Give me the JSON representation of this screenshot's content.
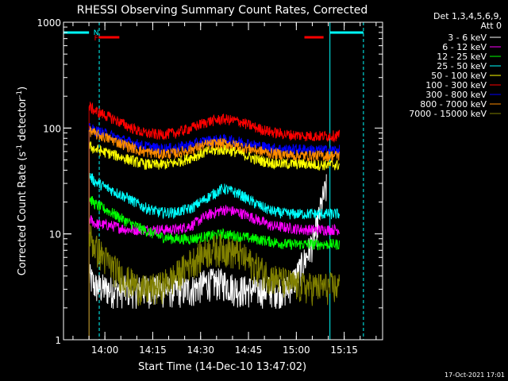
{
  "chart_data": {
    "type": "line",
    "title": "RHESSI Observing Summary Count Rates, Corrected",
    "xlabel": "Start Time (14-Dec-10 13:47:02)",
    "ylabel_main": "Corrected Count Rate (s",
    "ylabel_sup1": "-1",
    "ylabel_mid": " detector",
    "ylabel_sup2": "-1",
    "ylabel_end": ")",
    "y_scale": "log",
    "ylim": [
      1,
      1000
    ],
    "xlim_minutes": [
      0,
      100
    ],
    "x_ticks": [
      {
        "label": "14:00",
        "minute": 12.97
      },
      {
        "label": "14:15",
        "minute": 27.97
      },
      {
        "label": "14:30",
        "minute": 42.97
      },
      {
        "label": "14:45",
        "minute": 57.97
      },
      {
        "label": "15:00",
        "minute": 72.97
      },
      {
        "label": "15:15",
        "minute": 87.97
      }
    ],
    "y_ticks": [
      {
        "label": "1",
        "value": 1
      },
      {
        "label": "10",
        "value": 10
      },
      {
        "label": "100",
        "value": 100
      },
      {
        "label": "1000",
        "value": 1000
      }
    ],
    "legend_header": [
      "Det 1,3,4,5,6,9,",
      "Att 0"
    ],
    "legend_position": "right",
    "series": [
      {
        "name": "3 - 6 keV",
        "color": "#ffffff",
        "minutes": [
          8,
          10,
          15,
          20,
          25,
          30,
          35,
          40,
          45,
          50,
          55,
          60,
          65,
          70,
          73,
          76,
          79,
          81,
          82.5
        ],
        "values": [
          4,
          3.2,
          3,
          3,
          3,
          3,
          3,
          3,
          3.5,
          3.5,
          3,
          3,
          3,
          3,
          4,
          6,
          10,
          20,
          28
        ]
      },
      {
        "name": "6 - 12 keV",
        "color": "#ff00ff",
        "minutes": [
          8,
          10,
          15,
          20,
          25,
          30,
          35,
          40,
          45,
          50,
          55,
          60,
          65,
          70,
          75,
          80,
          85,
          86.5
        ],
        "values": [
          14,
          12.5,
          12,
          11,
          11,
          11,
          11,
          12,
          15,
          17,
          16,
          14,
          12,
          11.5,
          11,
          11,
          11,
          11
        ]
      },
      {
        "name": "12 - 25 keV",
        "color": "#00ff00",
        "minutes": [
          8,
          10,
          15,
          20,
          25,
          30,
          35,
          40,
          45,
          50,
          55,
          60,
          65,
          70,
          75,
          80,
          85,
          86.5
        ],
        "values": [
          22,
          19,
          16,
          13,
          11,
          9.5,
          9,
          9,
          9.5,
          10,
          9.5,
          9,
          8.5,
          8,
          8,
          8,
          8,
          8
        ]
      },
      {
        "name": "25 - 50 keV",
        "color": "#00ffff",
        "minutes": [
          8,
          10,
          15,
          20,
          25,
          30,
          35,
          40,
          45,
          50,
          55,
          60,
          65,
          70,
          75,
          80,
          85,
          86.5
        ],
        "values": [
          36,
          31,
          26,
          22,
          18,
          16,
          16,
          17.5,
          22,
          27,
          24,
          19.5,
          16.5,
          15.5,
          15.5,
          15.5,
          15.5,
          15.5
        ]
      },
      {
        "name": "50 - 100 keV",
        "color": "#ffff00",
        "minutes": [
          8,
          10,
          15,
          20,
          25,
          30,
          35,
          40,
          45,
          50,
          55,
          60,
          65,
          70,
          75,
          80,
          85,
          86.5
        ],
        "values": [
          68,
          63,
          57,
          51,
          46,
          45,
          47,
          53,
          60,
          63,
          59,
          51,
          47,
          46,
          46,
          45,
          45,
          45
        ]
      },
      {
        "name": "100 - 300 keV",
        "color": "#ff0000",
        "minutes": [
          8,
          10,
          15,
          20,
          25,
          30,
          35,
          40,
          45,
          50,
          55,
          60,
          65,
          70,
          75,
          80,
          85,
          86.5
        ],
        "values": [
          160,
          145,
          125,
          105,
          90,
          87,
          90,
          100,
          115,
          122,
          116,
          102,
          92,
          87,
          85,
          84,
          85,
          86
        ]
      },
      {
        "name": "300 - 800 keV",
        "color": "#0000ff",
        "minutes": [
          8,
          10,
          15,
          20,
          25,
          30,
          35,
          40,
          45,
          50,
          55,
          60,
          65,
          70,
          75,
          80,
          85,
          86.5
        ],
        "values": [
          100,
          95,
          85,
          75,
          68,
          64,
          65,
          70,
          76,
          78,
          75,
          69,
          65,
          63,
          63,
          62,
          62,
          62
        ]
      },
      {
        "name": "800 - 7000 keV",
        "color": "#ff8c00",
        "minutes": [
          8,
          10,
          15,
          20,
          25,
          30,
          35,
          40,
          45,
          50,
          55,
          60,
          65,
          70,
          75,
          80,
          85,
          86.5
        ],
        "values": [
          95,
          88,
          78,
          68,
          60,
          57,
          58,
          63,
          70,
          72,
          68,
          62,
          58,
          56,
          55,
          55,
          55,
          55
        ]
      },
      {
        "name": "7000 - 15000 keV",
        "color": "#808000",
        "minutes": [
          8,
          10,
          15,
          20,
          25,
          30,
          35,
          40,
          45,
          50,
          55,
          60,
          65,
          70,
          75,
          80,
          85,
          86.5
        ],
        "values": [
          10,
          7.5,
          5,
          3.7,
          3,
          3.2,
          4,
          5.5,
          7,
          7.5,
          6.5,
          5,
          4,
          3.5,
          3.2,
          3.2,
          3.2,
          3.2
        ]
      }
    ],
    "flag_bars": [
      {
        "label": "N",
        "color": "#00ffff",
        "start_minute": 0,
        "end_minute": 8,
        "level": "top"
      },
      {
        "label": "F",
        "color": "#ff0000",
        "start_minute": 11,
        "end_minute": 17.5,
        "level": "lower"
      },
      {
        "label": "",
        "color": "#ff0000",
        "start_minute": 75.5,
        "end_minute": 81.5,
        "level": "lower"
      },
      {
        "label": "",
        "color": "#00ffff",
        "start_minute": 83.5,
        "end_minute": 94,
        "level": "top"
      }
    ],
    "vertical_markers": [
      {
        "minute": 0,
        "color": "#00ffff",
        "style": "solid"
      },
      {
        "minute": 11.2,
        "color": "#00ffff",
        "style": "dashed"
      },
      {
        "minute": 83.5,
        "color": "#00ffff",
        "style": "solid"
      },
      {
        "minute": 94,
        "color": "#00ffff",
        "style": "dashed"
      }
    ]
  },
  "footer": {
    "timestamp": "17-Oct-2021 17:01"
  }
}
